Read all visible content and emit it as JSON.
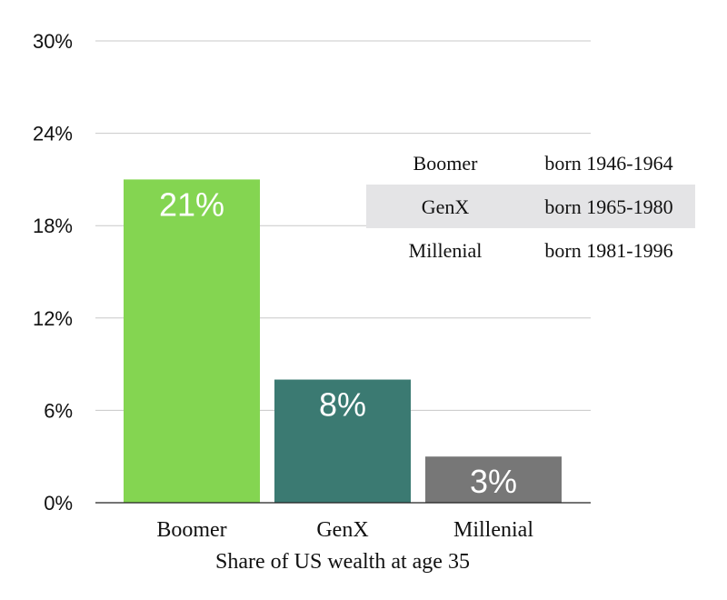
{
  "chart_data": {
    "type": "bar",
    "categories": [
      "Boomer",
      "GenX",
      "Millenial"
    ],
    "values": [
      21,
      8,
      3
    ],
    "value_labels": [
      "21%",
      "8%",
      "3%"
    ],
    "colors": [
      "#84d551",
      "#3b7a72",
      "#777777"
    ],
    "xlabel": "Share of US wealth at age 35",
    "ylabel": "",
    "ylim": [
      0,
      30
    ],
    "yticks": [
      0,
      6,
      12,
      18,
      24,
      30
    ],
    "ytick_labels": [
      "0%",
      "6%",
      "12%",
      "18%",
      "24%",
      "30%"
    ],
    "grid": true,
    "legend_placement": "top-right"
  },
  "legend_table": {
    "rows": [
      {
        "name": "Boomer",
        "years": "born 1946-1964",
        "shaded": false
      },
      {
        "name": "GenX",
        "years": "born 1965-1980",
        "shaded": true
      },
      {
        "name": "Millenial",
        "years": "born 1981-1996",
        "shaded": false
      }
    ],
    "shade_color": "#e4e4e6"
  }
}
